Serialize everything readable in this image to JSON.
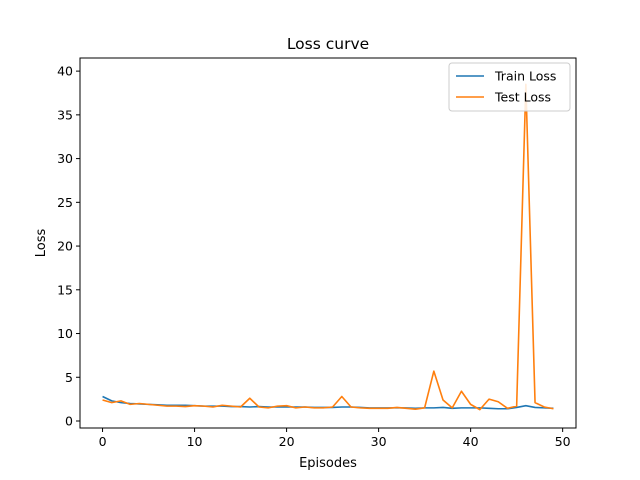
{
  "chart_data": {
    "type": "line",
    "title": "Loss curve",
    "xlabel": "Episodes",
    "ylabel": "Loss",
    "xlim": [
      -2.45,
      51.45
    ],
    "ylim": [
      -0.8,
      41.5
    ],
    "xticks": [
      0,
      10,
      20,
      30,
      40,
      50
    ],
    "yticks": [
      0,
      5,
      10,
      15,
      20,
      25,
      30,
      35,
      40
    ],
    "grid": false,
    "legend_position": "top-right",
    "x": [
      0,
      1,
      2,
      3,
      4,
      5,
      6,
      7,
      8,
      9,
      10,
      11,
      12,
      13,
      14,
      15,
      16,
      17,
      18,
      19,
      20,
      21,
      22,
      23,
      24,
      25,
      26,
      27,
      28,
      29,
      30,
      31,
      32,
      33,
      34,
      35,
      36,
      37,
      38,
      39,
      40,
      41,
      42,
      43,
      44,
      45,
      46,
      47,
      48,
      49
    ],
    "series": [
      {
        "name": "Train Loss",
        "color": "#1f77b4",
        "values": [
          2.8,
          2.3,
          2.1,
          2.0,
          1.95,
          1.9,
          1.85,
          1.8,
          1.8,
          1.8,
          1.75,
          1.7,
          1.7,
          1.7,
          1.65,
          1.65,
          1.6,
          1.65,
          1.6,
          1.6,
          1.6,
          1.6,
          1.6,
          1.55,
          1.55,
          1.55,
          1.6,
          1.6,
          1.55,
          1.5,
          1.5,
          1.5,
          1.5,
          1.5,
          1.45,
          1.5,
          1.5,
          1.55,
          1.45,
          1.5,
          1.5,
          1.5,
          1.45,
          1.4,
          1.4,
          1.55,
          1.75,
          1.55,
          1.5,
          1.45
        ]
      },
      {
        "name": "Test Loss",
        "color": "#ff7f0e",
        "values": [
          2.4,
          2.1,
          2.3,
          1.9,
          2.0,
          1.9,
          1.8,
          1.7,
          1.7,
          1.65,
          1.75,
          1.7,
          1.6,
          1.8,
          1.7,
          1.6,
          2.6,
          1.6,
          1.5,
          1.7,
          1.75,
          1.5,
          1.6,
          1.5,
          1.5,
          1.6,
          2.8,
          1.6,
          1.5,
          1.45,
          1.45,
          1.45,
          1.55,
          1.45,
          1.35,
          1.5,
          5.7,
          2.4,
          1.5,
          3.4,
          1.9,
          1.3,
          2.5,
          2.2,
          1.45,
          1.7,
          38.5,
          2.1,
          1.6,
          1.4
        ]
      }
    ]
  }
}
